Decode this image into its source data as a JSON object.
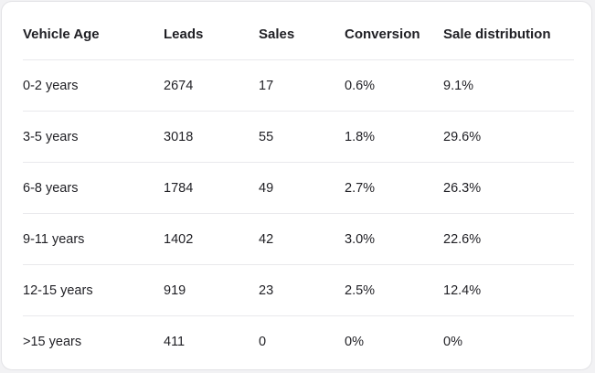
{
  "table": {
    "headers": [
      "Vehicle Age",
      "Leads",
      "Sales",
      "Conversion",
      "Sale distribution"
    ],
    "rows": [
      [
        "0-2 years",
        "2674",
        "17",
        "0.6%",
        "9.1%"
      ],
      [
        "3-5 years",
        "3018",
        "55",
        "1.8%",
        "29.6%"
      ],
      [
        "6-8 years",
        "1784",
        "49",
        "2.7%",
        "26.3%"
      ],
      [
        "9-11 years",
        "1402",
        "42",
        "3.0%",
        "22.6%"
      ],
      [
        "12-15 years",
        "919",
        "23",
        "2.5%",
        "12.4%"
      ],
      [
        ">15 years",
        "411",
        "0",
        "0%",
        "0%"
      ]
    ]
  }
}
